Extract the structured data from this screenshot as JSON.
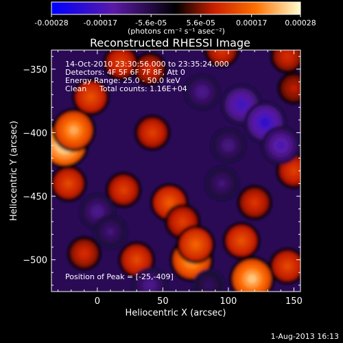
{
  "colorbar": {
    "tick_labels": [
      "-0.00028",
      "-0.00017",
      "-5.6e-05",
      "5.6e-05",
      "0.00017",
      "0.00028"
    ],
    "tick_values": [
      -0.00028,
      -0.00017,
      -5.6e-05,
      5.6e-05,
      0.00017,
      0.00028
    ],
    "range": [
      -0.00028,
      0.00028
    ],
    "units_label": "(photons cm⁻² s⁻¹ asec⁻²)",
    "colors": [
      "#0000ff",
      "#5a1aa6",
      "#000000",
      "#c81e00",
      "#ff7000",
      "#ffffd0"
    ]
  },
  "chart_data": {
    "type": "heatmap",
    "title": "Reconstructed RHESSI Image",
    "xlabel": "Heliocentric X (arcsec)",
    "ylabel": "Heliocentric Y (arcsec)",
    "xlim": [
      -35,
      155
    ],
    "ylim": [
      -525,
      -335
    ],
    "xticks": [
      0,
      50,
      100,
      150
    ],
    "xtick_labels": [
      "0",
      "50",
      "100",
      "150"
    ],
    "yticks": [
      -350,
      -400,
      -450,
      -500
    ],
    "ytick_labels": [
      "−350",
      "−400",
      "−450",
      "−500"
    ],
    "grid": false,
    "blobs": [
      {
        "x": -25,
        "y": -409,
        "value": 0.00028
      },
      {
        "x": -18,
        "y": -398,
        "value": 0.00022
      },
      {
        "x": -5,
        "y": -372,
        "value": 0.00014
      },
      {
        "x": 18,
        "y": -345,
        "value": 0.00012
      },
      {
        "x": 40,
        "y": -350,
        "value": 0.0001
      },
      {
        "x": 42,
        "y": -400,
        "value": 0.00012
      },
      {
        "x": -22,
        "y": -440,
        "value": 0.00013
      },
      {
        "x": 20,
        "y": -445,
        "value": 0.00012
      },
      {
        "x": 55,
        "y": -455,
        "value": 0.00015
      },
      {
        "x": 65,
        "y": -470,
        "value": 0.00012
      },
      {
        "x": -10,
        "y": -495,
        "value": 0.0001
      },
      {
        "x": 30,
        "y": -500,
        "value": 0.00013
      },
      {
        "x": 72,
        "y": -500,
        "value": 0.00022
      },
      {
        "x": 75,
        "y": -488,
        "value": 0.00016
      },
      {
        "x": 110,
        "y": -485,
        "value": 0.00014
      },
      {
        "x": 118,
        "y": -515,
        "value": 0.00024
      },
      {
        "x": 145,
        "y": -505,
        "value": 0.00013
      },
      {
        "x": 120,
        "y": -455,
        "value": 0.00011
      },
      {
        "x": 150,
        "y": -430,
        "value": 0.00012
      },
      {
        "x": 95,
        "y": -335,
        "value": 0.00011
      },
      {
        "x": 145,
        "y": -340,
        "value": 0.0001
      },
      {
        "x": 150,
        "y": -365,
        "value": 8e-05
      },
      {
        "x": 80,
        "y": -368,
        "value": -0.00012
      },
      {
        "x": 110,
        "y": -378,
        "value": -0.00018
      },
      {
        "x": 128,
        "y": -392,
        "value": -0.0002
      },
      {
        "x": 140,
        "y": -410,
        "value": -0.00016
      },
      {
        "x": 100,
        "y": -410,
        "value": -0.00011
      },
      {
        "x": 95,
        "y": -440,
        "value": -0.0001
      },
      {
        "x": 0,
        "y": -462,
        "value": -0.00012
      },
      {
        "x": 10,
        "y": -478,
        "value": -0.0001
      },
      {
        "x": 40,
        "y": -520,
        "value": -0.00012
      },
      {
        "x": 85,
        "y": -520,
        "value": -8e-05
      }
    ]
  },
  "annotations": {
    "time_range": "14-Oct-2010 23:30:56.000 to 23:35:24.000",
    "detectors": "Detectors: 4F 5F 6F 7F 8F, Att 0",
    "energy_range": "Energy Range: 25.0 - 50.0 keV",
    "clean": "Clean",
    "total_counts": "Total counts: 1.16E+04",
    "peak_position": "Position of Peak = [-25,-409]"
  },
  "footer_date": "1-Aug-2013 16:13"
}
